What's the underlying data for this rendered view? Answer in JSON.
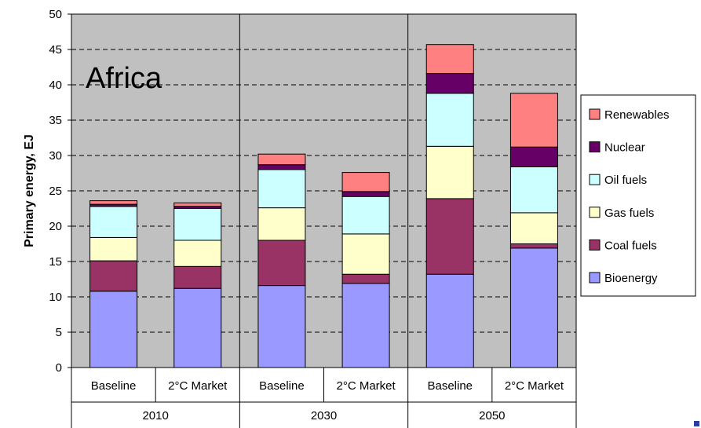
{
  "chart_data": {
    "type": "bar",
    "stacked": true,
    "title": "Africa",
    "ylabel": "Primary energy, EJ",
    "xlabel": "",
    "ylim": [
      0,
      50
    ],
    "yticks": [
      0,
      5,
      10,
      15,
      20,
      25,
      30,
      35,
      40,
      45,
      50
    ],
    "categories": [
      "Baseline",
      "2°C Market",
      "Baseline",
      "2°C Market",
      "Baseline",
      "2°C Market"
    ],
    "groups": [
      {
        "label": "2010",
        "span": 2
      },
      {
        "label": "2030",
        "span": 2
      },
      {
        "label": "2050",
        "span": 2
      }
    ],
    "series": [
      {
        "name": "Bioenergy",
        "color": "#9999ff",
        "values": [
          10.8,
          11.2,
          11.6,
          11.9,
          13.2,
          16.9
        ]
      },
      {
        "name": "Coal fuels",
        "color": "#993366",
        "values": [
          4.3,
          3.1,
          6.4,
          1.3,
          10.7,
          0.6
        ]
      },
      {
        "name": "Gas fuels",
        "color": "#ffffcc",
        "values": [
          3.3,
          3.7,
          4.6,
          5.7,
          7.4,
          4.4
        ]
      },
      {
        "name": "Oil fuels",
        "color": "#ccffff",
        "values": [
          4.4,
          4.5,
          5.4,
          5.3,
          7.5,
          6.5
        ]
      },
      {
        "name": "Nuclear",
        "color": "#660066",
        "values": [
          0.3,
          0.3,
          0.7,
          0.7,
          2.8,
          2.8
        ]
      },
      {
        "name": "Renewables",
        "color": "#ff8080",
        "values": [
          0.5,
          0.5,
          1.5,
          2.7,
          4.1,
          7.6
        ]
      }
    ],
    "legend_position": "right",
    "grid": "horizontal-dashed",
    "plot_background": "#c0c0c0"
  }
}
